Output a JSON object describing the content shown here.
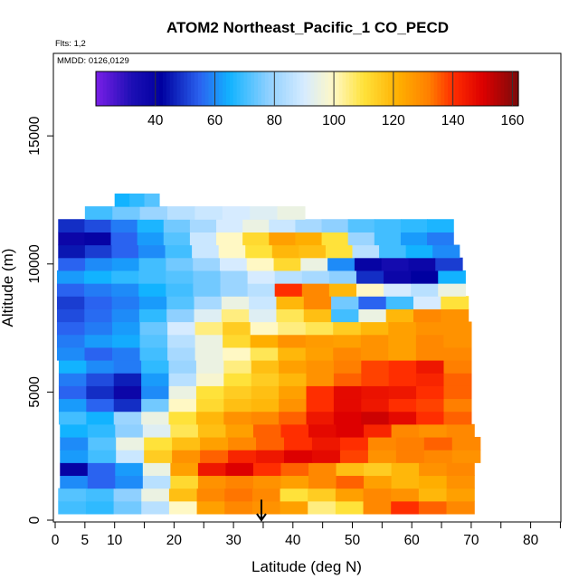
{
  "chart_data": {
    "type": "heatmap",
    "title": "ATOM2 Northeast_Pacific_1 CO_PECD",
    "subtitle_lines": [
      "Flts: 1,2",
      "MMDD: 0126,0129"
    ],
    "xlabel": "Latitude (deg N)",
    "ylabel": "Altitude (m)",
    "xlim": [
      0,
      85
    ],
    "ylim": [
      0,
      17500
    ],
    "x_ticks": [
      0,
      5,
      10,
      20,
      30,
      40,
      50,
      60,
      70,
      80
    ],
    "x_minor_ticks": [
      15,
      25,
      35,
      45,
      55,
      65,
      75,
      85
    ],
    "y_ticks": [
      0,
      5000,
      10000,
      15000
    ],
    "colorbar": {
      "range": [
        20,
        162
      ],
      "ticks": [
        40,
        60,
        80,
        100,
        120,
        140,
        160
      ],
      "position": "top",
      "stops": [
        {
          "v": 20,
          "c": "#7a1fe8"
        },
        {
          "v": 32,
          "c": "#1d0fb5"
        },
        {
          "v": 42,
          "c": "#0000a0"
        },
        {
          "v": 55,
          "c": "#2a63f0"
        },
        {
          "v": 65,
          "c": "#12b3ff"
        },
        {
          "v": 78,
          "c": "#8fd0ff"
        },
        {
          "v": 90,
          "c": "#d6ebff"
        },
        {
          "v": 100,
          "c": "#fff8c4"
        },
        {
          "v": 110,
          "c": "#ffe23a"
        },
        {
          "v": 122,
          "c": "#ffae00"
        },
        {
          "v": 132,
          "c": "#ff7f00"
        },
        {
          "v": 140,
          "c": "#ff2e00"
        },
        {
          "v": 150,
          "c": "#dd0000"
        },
        {
          "v": 162,
          "c": "#7a0a0a"
        }
      ]
    },
    "rows": [
      {
        "alt": 500,
        "lat_min": 0.5,
        "lat_max": 70.5,
        "values": [
          70,
          68,
          75,
          85,
          100,
          125,
          130,
          128,
          125,
          105,
          110,
          130,
          140,
          135,
          130
        ]
      },
      {
        "alt": 1000,
        "lat_min": 0.5,
        "lat_max": 70.5,
        "values": [
          72,
          70,
          78,
          95,
          118,
          130,
          133,
          130,
          110,
          115,
          125,
          130,
          128,
          120,
          125
        ]
      },
      {
        "alt": 1500,
        "lat_min": 0.8,
        "lat_max": 70.5,
        "values": [
          60,
          55,
          60,
          85,
          112,
          128,
          131,
          128,
          125,
          130,
          135,
          125,
          120,
          122,
          128
        ]
      },
      {
        "alt": 2000,
        "lat_min": 0.8,
        "lat_max": 70.5,
        "values": [
          40,
          55,
          62,
          95,
          125,
          145,
          150,
          140,
          135,
          130,
          118,
          115,
          120,
          128,
          130
        ]
      },
      {
        "alt": 2500,
        "lat_min": 0.8,
        "lat_max": 71.5,
        "values": [
          62,
          70,
          88,
          115,
          128,
          135,
          142,
          145,
          150,
          148,
          138,
          128,
          132,
          130,
          128
        ]
      },
      {
        "alt": 3000,
        "lat_min": 0.8,
        "lat_max": 71.5,
        "values": [
          60,
          72,
          95,
          110,
          118,
          125,
          130,
          135,
          140,
          145,
          140,
          130,
          132,
          135,
          130
        ]
      },
      {
        "alt": 3500,
        "lat_min": 0.8,
        "lat_max": 70.5,
        "values": [
          65,
          68,
          78,
          92,
          108,
          118,
          125,
          135,
          140,
          148,
          150,
          142,
          130,
          128,
          130
        ]
      },
      {
        "alt": 4000,
        "lat_min": 0.6,
        "lat_max": 70.0,
        "values": [
          70,
          65,
          80,
          95,
          110,
          120,
          128,
          130,
          135,
          145,
          150,
          152,
          148,
          140,
          135
        ]
      },
      {
        "alt": 4500,
        "lat_min": 0.6,
        "lat_max": 70.0,
        "values": [
          62,
          55,
          48,
          75,
          100,
          112,
          118,
          120,
          128,
          140,
          148,
          145,
          140,
          138,
          132
        ]
      },
      {
        "alt": 5000,
        "lat_min": 0.6,
        "lat_max": 70.0,
        "values": [
          55,
          48,
          38,
          60,
          95,
          110,
          115,
          118,
          125,
          140,
          148,
          146,
          145,
          140,
          135
        ]
      },
      {
        "alt": 5500,
        "lat_min": 0.6,
        "lat_max": 70.0,
        "values": [
          58,
          52,
          46,
          62,
          85,
          98,
          110,
          115,
          120,
          128,
          135,
          138,
          140,
          142,
          135
        ]
      },
      {
        "alt": 6000,
        "lat_min": 0.6,
        "lat_max": 70.0,
        "values": [
          65,
          60,
          58,
          68,
          80,
          95,
          105,
          118,
          125,
          128,
          132,
          138,
          140,
          145,
          132
        ]
      },
      {
        "alt": 6500,
        "lat_min": 0.3,
        "lat_max": 70.0,
        "values": [
          60,
          55,
          58,
          70,
          82,
          95,
          100,
          108,
          120,
          125,
          130,
          128,
          125,
          130,
          130
        ]
      },
      {
        "alt": 7000,
        "lat_min": 0.3,
        "lat_max": 70.0,
        "values": [
          58,
          62,
          64,
          72,
          85,
          95,
          112,
          122,
          128,
          126,
          125,
          128,
          125,
          130,
          128
        ]
      },
      {
        "alt": 7500,
        "lat_min": 0.3,
        "lat_max": 70.0,
        "values": [
          55,
          58,
          62,
          74,
          90,
          105,
          115,
          100,
          105,
          108,
          115,
          120,
          125,
          128,
          128
        ]
      },
      {
        "alt": 8000,
        "lat_min": 0.3,
        "lat_max": 69.5,
        "values": [
          52,
          56,
          60,
          68,
          78,
          92,
          105,
          92,
          108,
          118,
          70,
          95,
          120,
          130,
          128
        ]
      },
      {
        "alt": 8500,
        "lat_min": 0.3,
        "lat_max": 69.5,
        "values": [
          50,
          55,
          58,
          62,
          72,
          82,
          95,
          88,
          120,
          130,
          75,
          55,
          70,
          90,
          110
        ]
      },
      {
        "alt": 9000,
        "lat_min": 0.3,
        "lat_max": 69.0,
        "values": [
          55,
          58,
          60,
          65,
          70,
          75,
          80,
          85,
          140,
          130,
          120,
          100,
          90,
          85,
          95
        ]
      },
      {
        "alt": 9500,
        "lat_min": 0.3,
        "lat_max": 69.0,
        "values": [
          62,
          65,
          68,
          70,
          72,
          75,
          80,
          90,
          85,
          82,
          78,
          48,
          38,
          42,
          65
        ]
      },
      {
        "alt": 10000,
        "lat_min": 0.5,
        "lat_max": 68.5,
        "values": [
          55,
          60,
          62,
          70,
          75,
          80,
          90,
          100,
          112,
          95,
          60,
          40,
          35,
          38,
          50
        ]
      },
      {
        "alt": 10500,
        "lat_min": 0.5,
        "lat_max": 68.0,
        "values": [
          45,
          50,
          55,
          60,
          70,
          88,
          100,
          110,
          120,
          118,
          110,
          85,
          70,
          65,
          60
        ]
      },
      {
        "alt": 11000,
        "lat_min": 0.5,
        "lat_max": 67.0,
        "values": [
          38,
          40,
          55,
          62,
          72,
          88,
          100,
          112,
          125,
          122,
          110,
          80,
          70,
          62,
          58
        ]
      },
      {
        "alt": 11500,
        "lat_min": 0.5,
        "lat_max": 67.0,
        "values": [
          48,
          52,
          58,
          66,
          75,
          82,
          90,
          95,
          88,
          82,
          78,
          72,
          70,
          68,
          66
        ]
      },
      {
        "alt": 12000,
        "lat_min": 5.0,
        "lat_max": 42.0,
        "values": [
          70,
          75,
          80,
          85,
          88,
          90,
          92,
          95
        ]
      },
      {
        "alt": 12500,
        "lat_min": 10.0,
        "lat_max": 17.5,
        "values": [
          65,
          68,
          72
        ]
      }
    ],
    "annotations": [
      {
        "type": "arrow",
        "x": 34.7,
        "y_from": 800,
        "y_to": 0,
        "direction": "down"
      }
    ]
  }
}
